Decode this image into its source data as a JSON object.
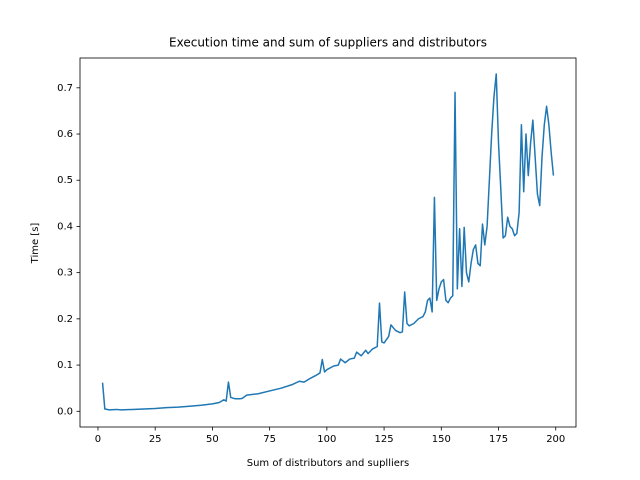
{
  "chart_data": {
    "type": "line",
    "title": "Execution time and sum of suppliers and distributors",
    "x_label": "Sum of distributors and suplliers",
    "y_label": "Time [s]",
    "color": "#1f77b4",
    "x": [
      2,
      3,
      5,
      8,
      10,
      15,
      20,
      25,
      30,
      35,
      40,
      45,
      50,
      53,
      55,
      56,
      57,
      58,
      60,
      62,
      63,
      65,
      70,
      75,
      80,
      85,
      88,
      90,
      93,
      95,
      97,
      98,
      99,
      100,
      103,
      105,
      106,
      108,
      110,
      112,
      113,
      115,
      117,
      118,
      120,
      122,
      123,
      124,
      125,
      127,
      128,
      130,
      132,
      133,
      134,
      135,
      136,
      138,
      140,
      142,
      143,
      144,
      145,
      146,
      147,
      148,
      149,
      150,
      151,
      152,
      153,
      154,
      155,
      156,
      157,
      158,
      159,
      160,
      161,
      162,
      163,
      164,
      165,
      166,
      167,
      168,
      169,
      170,
      171,
      172,
      173,
      174,
      175,
      176,
      177,
      178,
      179,
      180,
      181,
      182,
      183,
      184,
      185,
      186,
      187,
      188,
      189,
      190,
      191,
      192,
      193,
      194,
      195,
      196,
      197,
      198,
      199
    ],
    "values": [
      0.062,
      0.005,
      0.003,
      0.004,
      0.003,
      0.004,
      0.005,
      0.006,
      0.008,
      0.009,
      0.011,
      0.013,
      0.016,
      0.019,
      0.025,
      0.022,
      0.063,
      0.03,
      0.027,
      0.027,
      0.028,
      0.035,
      0.038,
      0.044,
      0.05,
      0.058,
      0.065,
      0.063,
      0.072,
      0.077,
      0.083,
      0.112,
      0.085,
      0.09,
      0.098,
      0.1,
      0.113,
      0.105,
      0.113,
      0.115,
      0.128,
      0.12,
      0.132,
      0.125,
      0.135,
      0.14,
      0.234,
      0.15,
      0.148,
      0.162,
      0.187,
      0.175,
      0.17,
      0.172,
      0.258,
      0.19,
      0.185,
      0.19,
      0.2,
      0.205,
      0.215,
      0.24,
      0.245,
      0.215,
      0.463,
      0.24,
      0.265,
      0.28,
      0.285,
      0.24,
      0.235,
      0.245,
      0.25,
      0.69,
      0.265,
      0.395,
      0.27,
      0.398,
      0.3,
      0.28,
      0.32,
      0.35,
      0.36,
      0.32,
      0.315,
      0.405,
      0.36,
      0.4,
      0.5,
      0.6,
      0.68,
      0.73,
      0.58,
      0.48,
      0.375,
      0.38,
      0.42,
      0.4,
      0.395,
      0.38,
      0.385,
      0.43,
      0.62,
      0.475,
      0.6,
      0.51,
      0.58,
      0.63,
      0.55,
      0.47,
      0.445,
      0.55,
      0.62,
      0.66,
      0.62,
      0.56,
      0.51
    ],
    "xlim": [
      -7.85,
      208.85
    ],
    "ylim": [
      -0.034,
      0.7645
    ],
    "xticks": [
      0,
      25,
      50,
      75,
      100,
      125,
      150,
      175,
      200
    ],
    "yticks": [
      {
        "value": 0,
        "label": "0.0"
      },
      0.1,
      0.2,
      0.3,
      0.4,
      0.5,
      0.6,
      0.7
    ],
    "grid": false
  }
}
